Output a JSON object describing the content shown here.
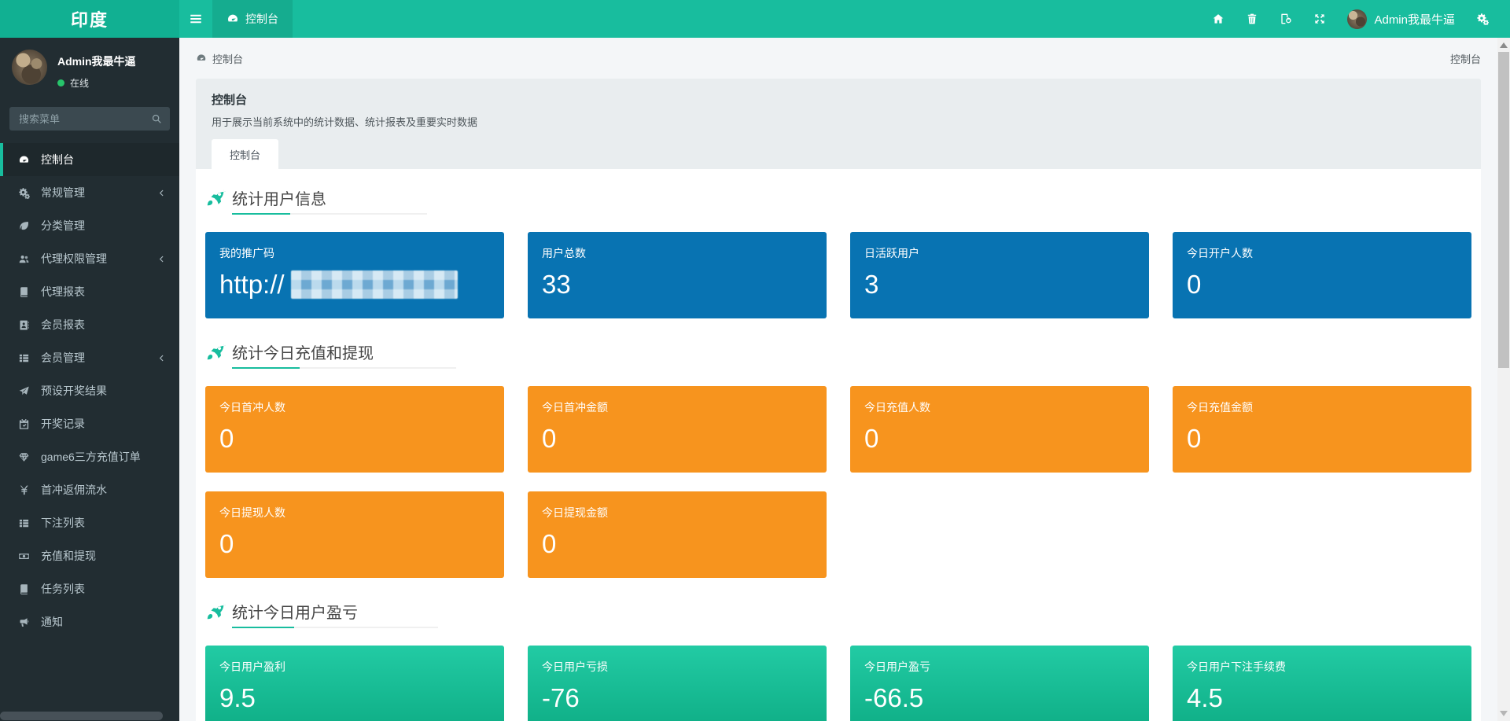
{
  "brand": {
    "title": "印度"
  },
  "navbar": {
    "tab": {
      "label": "控制台",
      "icon": "gauge"
    },
    "tools": [
      {
        "icon": "home"
      },
      {
        "icon": "trash"
      },
      {
        "icon": "clear-cache"
      },
      {
        "icon": "expand"
      }
    ],
    "user": {
      "name": "Admin我最牛逼"
    },
    "settings_icon": "cogs"
  },
  "sidebar": {
    "user": {
      "name": "Admin我最牛逼",
      "status": "在线",
      "status_color": "#27c46b"
    },
    "search_placeholder": "搜索菜单",
    "search_icon": "search",
    "menu": [
      {
        "label": "控制台",
        "icon": "gauge",
        "active": true
      },
      {
        "label": "常规管理",
        "icon": "cogs",
        "chevron": true
      },
      {
        "label": "分类管理",
        "icon": "leaf"
      },
      {
        "label": "代理权限管理",
        "icon": "users",
        "chevron": true
      },
      {
        "label": "代理报表",
        "icon": "book"
      },
      {
        "label": "会员报表",
        "icon": "address-book"
      },
      {
        "label": "会员管理",
        "icon": "list",
        "chevron": true
      },
      {
        "label": "预设开奖结果",
        "icon": "paper-plane"
      },
      {
        "label": "开奖记录",
        "icon": "calendar-check"
      },
      {
        "label": "game6三方充值订单",
        "icon": "gem"
      },
      {
        "label": "首冲返佣流水",
        "icon": "yen"
      },
      {
        "label": "下注列表",
        "icon": "list"
      },
      {
        "label": "充值和提现",
        "icon": "money"
      },
      {
        "label": "任务列表",
        "icon": "book"
      },
      {
        "label": "通知",
        "icon": "bullhorn"
      }
    ]
  },
  "breadcrumb": {
    "current": "控制台",
    "right": "控制台",
    "icon": "gauge"
  },
  "page_header": {
    "title": "控制台",
    "description": "用于展示当前系统中的统计数据、统计报表及重要实时数据"
  },
  "content_tab": {
    "label": "控制台"
  },
  "sections": [
    {
      "title": "统计用户信息",
      "icon": "rocket",
      "cards": [
        {
          "label": "我的推广码",
          "value": "http://",
          "masked": true,
          "color": "blue"
        },
        {
          "label": "用户总数",
          "value": "33",
          "color": "blue"
        },
        {
          "label": "日活跃用户",
          "value": "3",
          "color": "blue"
        },
        {
          "label": "今日开户人数",
          "value": "0",
          "color": "blue"
        }
      ]
    },
    {
      "title": "统计今日充值和提现",
      "icon": "rocket",
      "cards": [
        {
          "label": "今日首冲人数",
          "value": "0",
          "color": "orange"
        },
        {
          "label": "今日首冲金额",
          "value": "0",
          "color": "orange"
        },
        {
          "label": "今日充值人数",
          "value": "0",
          "color": "orange"
        },
        {
          "label": "今日充值金额",
          "value": "0",
          "color": "orange"
        },
        {
          "label": "今日提现人数",
          "value": "0",
          "color": "orange"
        },
        {
          "label": "今日提现金额",
          "value": "0",
          "color": "orange"
        }
      ]
    },
    {
      "title": "统计今日用户盈亏",
      "icon": "rocket",
      "cards": [
        {
          "label": "今日用户盈利",
          "value": "9.5",
          "color": "green"
        },
        {
          "label": "今日用户亏损",
          "value": "-76",
          "color": "green"
        },
        {
          "label": "今日用户盈亏",
          "value": "-66.5",
          "color": "green"
        },
        {
          "label": "今日用户下注手续费",
          "value": "4.5",
          "color": "green"
        }
      ]
    }
  ],
  "colors": {
    "navbar_teal": "#18bd9e",
    "brand_teal": "#11b092",
    "sidebar_dark": "#222d32",
    "card_blue": "#0873b2",
    "card_orange": "#f7941e",
    "card_green_top": "#22cba4",
    "card_green_bottom": "#0ead85",
    "accent": "#18bd9e"
  }
}
